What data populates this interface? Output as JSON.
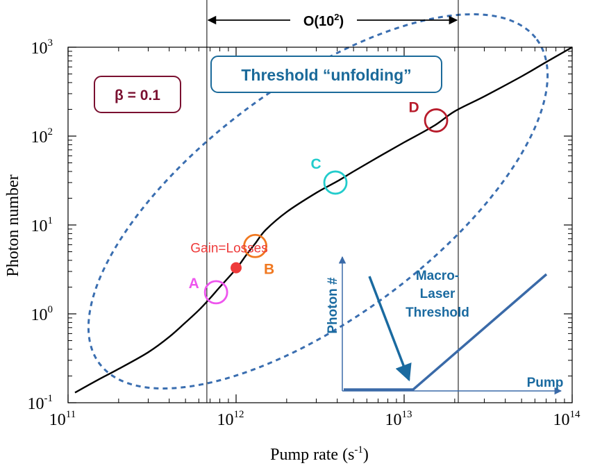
{
  "chart_data": {
    "type": "line",
    "xlabel": "Pump rate (s",
    "xlabel_sup": "-1",
    "xlabel_close": ")",
    "ylabel": "Photon number",
    "x_scale": "log",
    "y_scale": "log",
    "xlim": [
      100000000000.0,
      100000000000000.0
    ],
    "ylim": [
      0.1,
      1000
    ],
    "x_ticks": [
      {
        "value": 100000000000.0,
        "base": "10",
        "exp": "11"
      },
      {
        "value": 1000000000000.0,
        "base": "10",
        "exp": "12"
      },
      {
        "value": 10000000000000.0,
        "base": "10",
        "exp": "13"
      },
      {
        "value": 100000000000000.0,
        "base": "10",
        "exp": "14"
      }
    ],
    "y_ticks": [
      {
        "value": 0.1,
        "base": "10",
        "exp": "-1"
      },
      {
        "value": 1,
        "base": "10",
        "exp": "0"
      },
      {
        "value": 10,
        "base": "10",
        "exp": "1"
      },
      {
        "value": 100,
        "base": "10",
        "exp": "2"
      },
      {
        "value": 1000,
        "base": "10",
        "exp": "3"
      }
    ],
    "grid": false,
    "series": [
      {
        "color": "#000000",
        "x": [
          110000000000.0,
          150000000000.0,
          200000000000.0,
          300000000000.0,
          400000000000.0,
          500000000000.0,
          600000000000.0,
          700000000000.0,
          800000000000.0,
          1000000000000.0,
          1150000000000.0,
          1300000000000.0,
          1500000000000.0,
          2000000000000.0,
          3000000000000.0,
          4000000000000.0,
          5000000000000.0,
          7000000000000.0,
          10000000000000.0,
          15000000000000.0,
          20000000000000.0,
          30000000000000.0,
          50000000000000.0,
          70000000000000.0,
          100000000000000.0
        ],
        "y": [
          0.13,
          0.18,
          0.24,
          0.37,
          0.55,
          0.8,
          1.1,
          1.5,
          2.0,
          3.2,
          4.6,
          6.2,
          8.8,
          14,
          23,
          31,
          40,
          58,
          85,
          130,
          190,
          280,
          470,
          680,
          1000
        ]
      }
    ],
    "markers": [
      {
        "label": "A",
        "x": 760000000000.0,
        "y": 1.75,
        "color": "#ee55ee",
        "shape": "open-circle"
      },
      {
        "label": "B",
        "x": 1300000000000.0,
        "y": 5.8,
        "color": "#f07820",
        "shape": "open-circle"
      },
      {
        "label": "C",
        "x": 3900000000000.0,
        "y": 30,
        "color": "#22cccc",
        "shape": "open-circle"
      },
      {
        "label": "D",
        "x": 15500000000000.0,
        "y": 150,
        "color": "#b81c2c",
        "shape": "open-circle"
      },
      {
        "label": "Gain=Losses",
        "x": 1000000000000.0,
        "y": 3.3,
        "color": "#ee3a3a",
        "shape": "filled-dot"
      }
    ],
    "vertical_lines": [
      {
        "x": 670000000000.0,
        "color": "#000000"
      },
      {
        "x": 21000000000000.0,
        "color": "#000000"
      }
    ],
    "annotations": {
      "span_label": "O(10",
      "span_label_sup": "2",
      "span_label_close": ")",
      "beta_label": "β = 0.1",
      "unfolding_label": "Threshold “unfolding”",
      "macro_label_lines": [
        "Macro-",
        "Laser",
        "Threshold"
      ],
      "inset_ylabel": "Photon #",
      "inset_xlabel": "Pump"
    },
    "colors": {
      "ellipse": "#3a6eb0",
      "inset": "#3a6aa8",
      "unfolding_text": "#1b6a9a",
      "beta_text": "#7a1030",
      "macro_text": "#1a6aa0"
    }
  }
}
